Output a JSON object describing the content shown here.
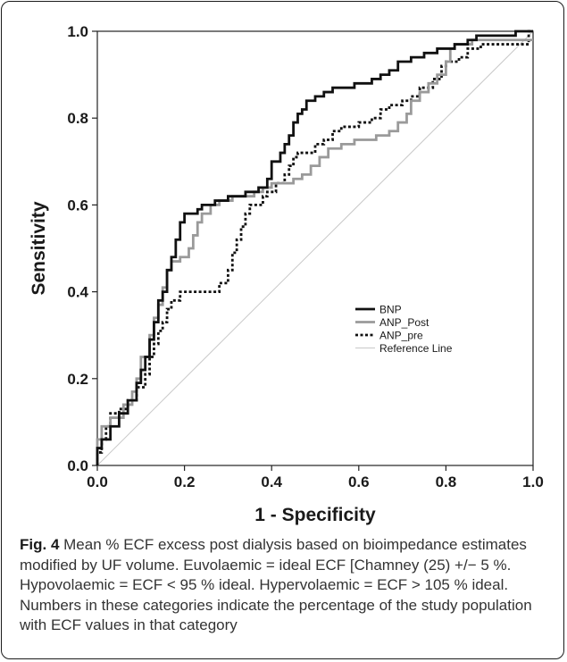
{
  "caption": {
    "figure_label": "Fig. 4",
    "text": "Mean % ECF excess post dialysis based on bioimpedance estimates modified by UF volume. Euvolaemic = ideal ECF [Chamney (25) +/− 5 %. Hypovolaemic = ECF < 95 % ideal. Hypervolaemic = ECF > 105 % ideal. Numbers in these categories indicate the percentage of the study population with ECF values in that category"
  },
  "chart_data": {
    "type": "line",
    "title": "",
    "xlabel": "1 - Specificity",
    "ylabel": "Sensitivity",
    "xlim": [
      0,
      1
    ],
    "ylim": [
      0,
      1
    ],
    "xticks": [
      "0.0",
      "0.2",
      "0.4",
      "0.6",
      "0.8",
      "1.0"
    ],
    "yticks": [
      "0.0",
      "0.2",
      "0.4",
      "0.6",
      "0.8",
      "1.0"
    ],
    "grid": false,
    "legend_position": "bottom-right",
    "series": [
      {
        "name": "BNP",
        "color": "#111111",
        "style": "solid-thick",
        "points": [
          [
            0,
            0
          ],
          [
            0,
            0.04
          ],
          [
            0.01,
            0.04
          ],
          [
            0.01,
            0.06
          ],
          [
            0.03,
            0.06
          ],
          [
            0.03,
            0.09
          ],
          [
            0.05,
            0.09
          ],
          [
            0.05,
            0.12
          ],
          [
            0.07,
            0.12
          ],
          [
            0.07,
            0.15
          ],
          [
            0.09,
            0.15
          ],
          [
            0.09,
            0.19
          ],
          [
            0.1,
            0.19
          ],
          [
            0.1,
            0.22
          ],
          [
            0.11,
            0.22
          ],
          [
            0.11,
            0.25
          ],
          [
            0.12,
            0.25
          ],
          [
            0.12,
            0.29
          ],
          [
            0.13,
            0.29
          ],
          [
            0.13,
            0.33
          ],
          [
            0.14,
            0.33
          ],
          [
            0.14,
            0.38
          ],
          [
            0.15,
            0.38
          ],
          [
            0.15,
            0.4
          ],
          [
            0.16,
            0.4
          ],
          [
            0.16,
            0.45
          ],
          [
            0.17,
            0.45
          ],
          [
            0.17,
            0.48
          ],
          [
            0.18,
            0.48
          ],
          [
            0.18,
            0.52
          ],
          [
            0.19,
            0.52
          ],
          [
            0.19,
            0.56
          ],
          [
            0.2,
            0.56
          ],
          [
            0.2,
            0.58
          ],
          [
            0.23,
            0.58
          ],
          [
            0.23,
            0.59
          ],
          [
            0.24,
            0.59
          ],
          [
            0.24,
            0.6
          ],
          [
            0.27,
            0.6
          ],
          [
            0.27,
            0.61
          ],
          [
            0.3,
            0.61
          ],
          [
            0.3,
            0.62
          ],
          [
            0.34,
            0.62
          ],
          [
            0.34,
            0.63
          ],
          [
            0.37,
            0.63
          ],
          [
            0.37,
            0.64
          ],
          [
            0.39,
            0.64
          ],
          [
            0.39,
            0.66
          ],
          [
            0.4,
            0.66
          ],
          [
            0.4,
            0.7
          ],
          [
            0.42,
            0.7
          ],
          [
            0.42,
            0.72
          ],
          [
            0.43,
            0.72
          ],
          [
            0.43,
            0.74
          ],
          [
            0.44,
            0.74
          ],
          [
            0.44,
            0.76
          ],
          [
            0.45,
            0.76
          ],
          [
            0.45,
            0.79
          ],
          [
            0.46,
            0.79
          ],
          [
            0.46,
            0.81
          ],
          [
            0.47,
            0.81
          ],
          [
            0.47,
            0.82
          ],
          [
            0.48,
            0.82
          ],
          [
            0.48,
            0.84
          ],
          [
            0.5,
            0.84
          ],
          [
            0.5,
            0.85
          ],
          [
            0.52,
            0.85
          ],
          [
            0.52,
            0.86
          ],
          [
            0.54,
            0.86
          ],
          [
            0.54,
            0.87
          ],
          [
            0.59,
            0.87
          ],
          [
            0.59,
            0.88
          ],
          [
            0.63,
            0.88
          ],
          [
            0.63,
            0.89
          ],
          [
            0.65,
            0.89
          ],
          [
            0.65,
            0.9
          ],
          [
            0.67,
            0.9
          ],
          [
            0.67,
            0.91
          ],
          [
            0.69,
            0.91
          ],
          [
            0.69,
            0.93
          ],
          [
            0.72,
            0.93
          ],
          [
            0.72,
            0.94
          ],
          [
            0.75,
            0.94
          ],
          [
            0.75,
            0.95
          ],
          [
            0.78,
            0.95
          ],
          [
            0.78,
            0.96
          ],
          [
            0.82,
            0.96
          ],
          [
            0.82,
            0.97
          ],
          [
            0.85,
            0.97
          ],
          [
            0.85,
            0.98
          ],
          [
            0.87,
            0.98
          ],
          [
            0.87,
            0.99
          ],
          [
            0.96,
            0.99
          ],
          [
            0.96,
            1
          ],
          [
            1,
            1
          ]
        ]
      },
      {
        "name": "ANP_Post",
        "color": "#9a9a9a",
        "style": "solid-thick",
        "points": [
          [
            0,
            0
          ],
          [
            0,
            0.06
          ],
          [
            0.01,
            0.06
          ],
          [
            0.01,
            0.09
          ],
          [
            0.03,
            0.09
          ],
          [
            0.03,
            0.11
          ],
          [
            0.06,
            0.11
          ],
          [
            0.06,
            0.14
          ],
          [
            0.08,
            0.14
          ],
          [
            0.08,
            0.17
          ],
          [
            0.09,
            0.17
          ],
          [
            0.09,
            0.2
          ],
          [
            0.1,
            0.2
          ],
          [
            0.1,
            0.25
          ],
          [
            0.12,
            0.25
          ],
          [
            0.12,
            0.3
          ],
          [
            0.13,
            0.3
          ],
          [
            0.13,
            0.34
          ],
          [
            0.14,
            0.34
          ],
          [
            0.14,
            0.37
          ],
          [
            0.15,
            0.37
          ],
          [
            0.15,
            0.41
          ],
          [
            0.16,
            0.41
          ],
          [
            0.16,
            0.45
          ],
          [
            0.17,
            0.45
          ],
          [
            0.17,
            0.47
          ],
          [
            0.19,
            0.47
          ],
          [
            0.19,
            0.48
          ],
          [
            0.21,
            0.48
          ],
          [
            0.21,
            0.5
          ],
          [
            0.22,
            0.5
          ],
          [
            0.22,
            0.53
          ],
          [
            0.23,
            0.53
          ],
          [
            0.23,
            0.56
          ],
          [
            0.24,
            0.56
          ],
          [
            0.24,
            0.58
          ],
          [
            0.26,
            0.58
          ],
          [
            0.26,
            0.6
          ],
          [
            0.28,
            0.6
          ],
          [
            0.28,
            0.61
          ],
          [
            0.31,
            0.61
          ],
          [
            0.31,
            0.62
          ],
          [
            0.36,
            0.62
          ],
          [
            0.36,
            0.63
          ],
          [
            0.38,
            0.63
          ],
          [
            0.38,
            0.64
          ],
          [
            0.4,
            0.64
          ],
          [
            0.4,
            0.65
          ],
          [
            0.45,
            0.65
          ],
          [
            0.45,
            0.66
          ],
          [
            0.47,
            0.66
          ],
          [
            0.47,
            0.67
          ],
          [
            0.49,
            0.67
          ],
          [
            0.49,
            0.69
          ],
          [
            0.51,
            0.69
          ],
          [
            0.51,
            0.71
          ],
          [
            0.53,
            0.71
          ],
          [
            0.53,
            0.73
          ],
          [
            0.56,
            0.73
          ],
          [
            0.56,
            0.74
          ],
          [
            0.59,
            0.74
          ],
          [
            0.59,
            0.75
          ],
          [
            0.64,
            0.75
          ],
          [
            0.64,
            0.76
          ],
          [
            0.67,
            0.76
          ],
          [
            0.67,
            0.77
          ],
          [
            0.69,
            0.77
          ],
          [
            0.69,
            0.79
          ],
          [
            0.71,
            0.79
          ],
          [
            0.71,
            0.81
          ],
          [
            0.72,
            0.81
          ],
          [
            0.72,
            0.84
          ],
          [
            0.74,
            0.84
          ],
          [
            0.74,
            0.86
          ],
          [
            0.76,
            0.86
          ],
          [
            0.76,
            0.88
          ],
          [
            0.78,
            0.88
          ],
          [
            0.78,
            0.9
          ],
          [
            0.8,
            0.9
          ],
          [
            0.8,
            0.93
          ],
          [
            0.81,
            0.93
          ],
          [
            0.81,
            0.96
          ],
          [
            0.82,
            0.96
          ],
          [
            0.82,
            0.97
          ],
          [
            0.86,
            0.97
          ],
          [
            0.86,
            0.98
          ],
          [
            1,
            0.98
          ]
        ]
      },
      {
        "name": "ANP_pre",
        "color": "#111111",
        "style": "dotted-thick",
        "points": [
          [
            0,
            0
          ],
          [
            0,
            0.03
          ],
          [
            0.01,
            0.03
          ],
          [
            0.01,
            0.06
          ],
          [
            0.02,
            0.06
          ],
          [
            0.02,
            0.09
          ],
          [
            0.03,
            0.09
          ],
          [
            0.03,
            0.12
          ],
          [
            0.05,
            0.12
          ],
          [
            0.05,
            0.13
          ],
          [
            0.07,
            0.13
          ],
          [
            0.07,
            0.15
          ],
          [
            0.09,
            0.15
          ],
          [
            0.09,
            0.18
          ],
          [
            0.11,
            0.18
          ],
          [
            0.11,
            0.21
          ],
          [
            0.12,
            0.21
          ],
          [
            0.12,
            0.25
          ],
          [
            0.13,
            0.25
          ],
          [
            0.13,
            0.28
          ],
          [
            0.14,
            0.28
          ],
          [
            0.14,
            0.31
          ],
          [
            0.15,
            0.31
          ],
          [
            0.15,
            0.33
          ],
          [
            0.16,
            0.33
          ],
          [
            0.16,
            0.36
          ],
          [
            0.17,
            0.36
          ],
          [
            0.17,
            0.38
          ],
          [
            0.19,
            0.38
          ],
          [
            0.19,
            0.4
          ],
          [
            0.28,
            0.4
          ],
          [
            0.28,
            0.42
          ],
          [
            0.3,
            0.42
          ],
          [
            0.3,
            0.45
          ],
          [
            0.31,
            0.45
          ],
          [
            0.31,
            0.49
          ],
          [
            0.32,
            0.49
          ],
          [
            0.32,
            0.52
          ],
          [
            0.33,
            0.52
          ],
          [
            0.33,
            0.55
          ],
          [
            0.34,
            0.55
          ],
          [
            0.34,
            0.58
          ],
          [
            0.35,
            0.58
          ],
          [
            0.35,
            0.6
          ],
          [
            0.38,
            0.6
          ],
          [
            0.38,
            0.62
          ],
          [
            0.39,
            0.62
          ],
          [
            0.39,
            0.63
          ],
          [
            0.41,
            0.63
          ],
          [
            0.41,
            0.65
          ],
          [
            0.43,
            0.65
          ],
          [
            0.43,
            0.67
          ],
          [
            0.44,
            0.67
          ],
          [
            0.44,
            0.69
          ],
          [
            0.45,
            0.69
          ],
          [
            0.45,
            0.71
          ],
          [
            0.46,
            0.71
          ],
          [
            0.46,
            0.72
          ],
          [
            0.5,
            0.72
          ],
          [
            0.5,
            0.74
          ],
          [
            0.52,
            0.74
          ],
          [
            0.52,
            0.75
          ],
          [
            0.54,
            0.75
          ],
          [
            0.54,
            0.77
          ],
          [
            0.56,
            0.77
          ],
          [
            0.56,
            0.78
          ],
          [
            0.6,
            0.78
          ],
          [
            0.6,
            0.79
          ],
          [
            0.63,
            0.79
          ],
          [
            0.63,
            0.8
          ],
          [
            0.65,
            0.8
          ],
          [
            0.65,
            0.82
          ],
          [
            0.67,
            0.82
          ],
          [
            0.67,
            0.83
          ],
          [
            0.7,
            0.83
          ],
          [
            0.7,
            0.84
          ],
          [
            0.72,
            0.84
          ],
          [
            0.72,
            0.85
          ],
          [
            0.74,
            0.85
          ],
          [
            0.74,
            0.87
          ],
          [
            0.77,
            0.87
          ],
          [
            0.77,
            0.89
          ],
          [
            0.79,
            0.89
          ],
          [
            0.79,
            0.92
          ],
          [
            0.8,
            0.92
          ],
          [
            0.8,
            0.93
          ],
          [
            0.83,
            0.93
          ],
          [
            0.83,
            0.94
          ],
          [
            0.85,
            0.94
          ],
          [
            0.85,
            0.96
          ],
          [
            0.88,
            0.96
          ],
          [
            0.88,
            0.97
          ],
          [
            0.99,
            0.97
          ],
          [
            0.99,
            1
          ],
          [
            1,
            1
          ]
        ]
      },
      {
        "name": "Reference Line",
        "color": "#c8c8c8",
        "style": "solid-thin",
        "points": [
          [
            0,
            0
          ],
          [
            1,
            1
          ]
        ]
      }
    ]
  }
}
